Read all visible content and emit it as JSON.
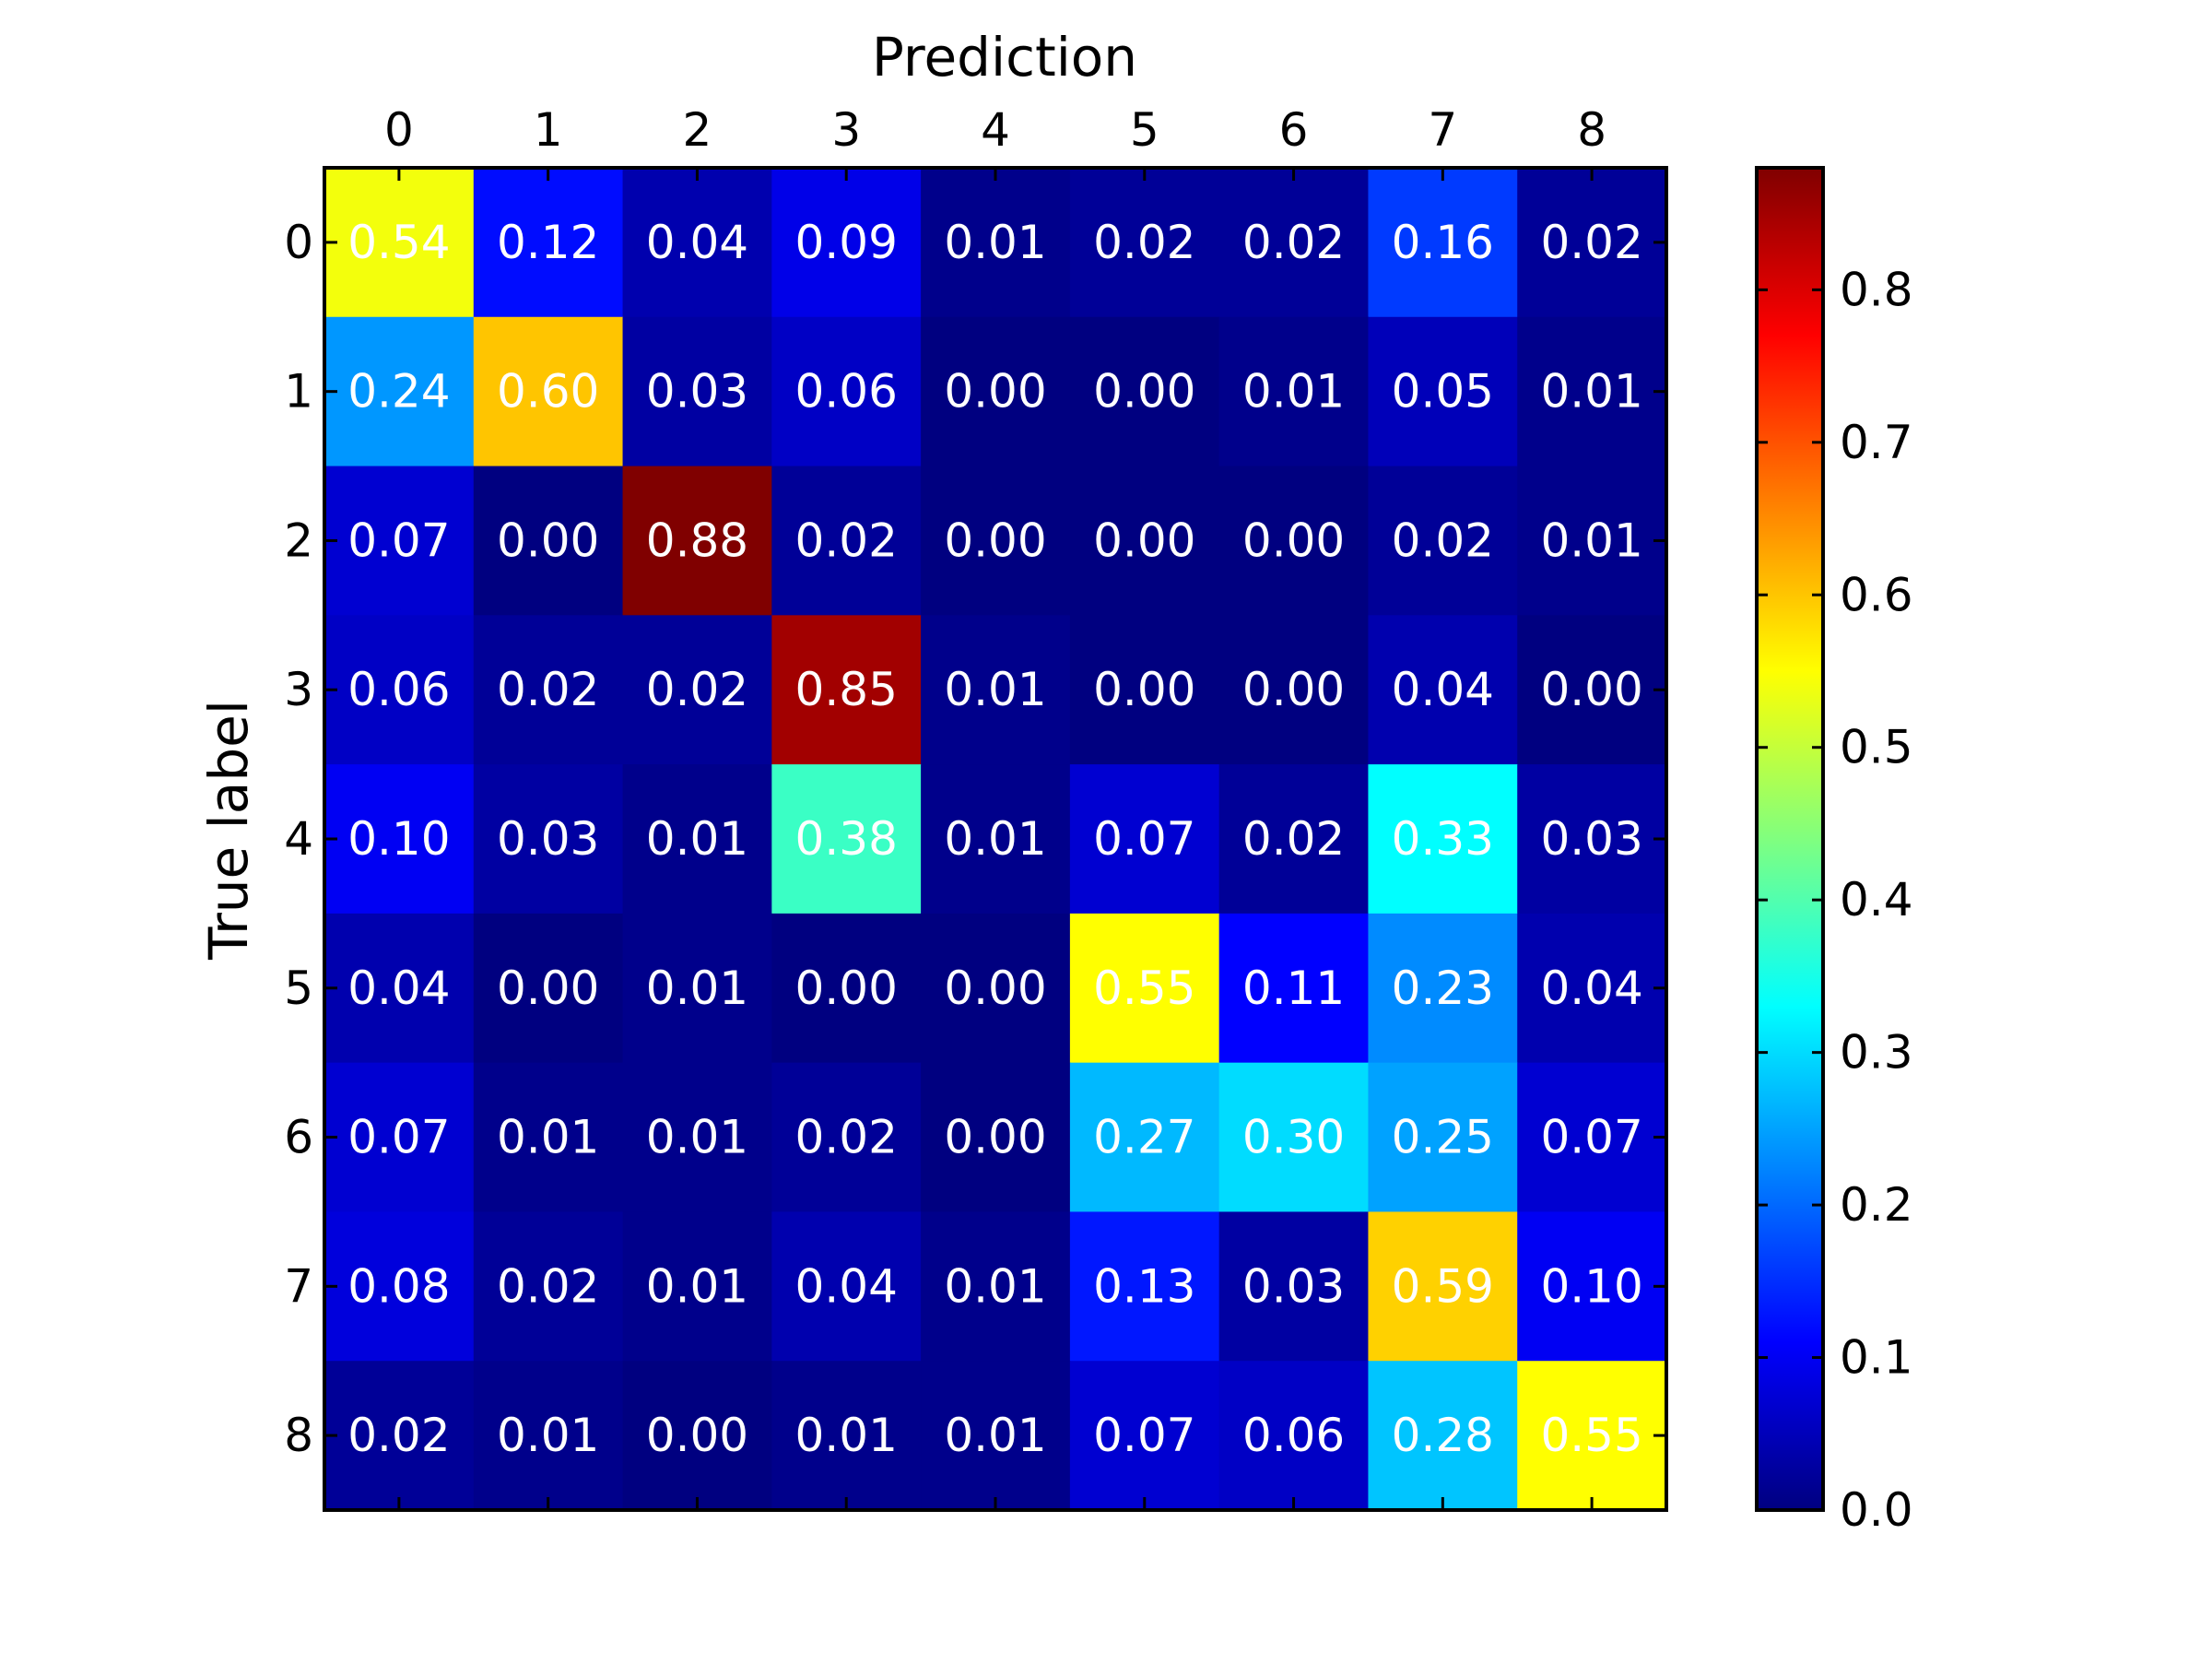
{
  "chart_data": {
    "type": "heatmap",
    "xlabel": "Prediction",
    "ylabel": "True label",
    "x_tick_labels": [
      "0",
      "1",
      "2",
      "3",
      "4",
      "5",
      "6",
      "7",
      "8"
    ],
    "y_tick_labels": [
      "0",
      "1",
      "2",
      "3",
      "4",
      "5",
      "6",
      "7",
      "8"
    ],
    "values": [
      [
        0.54,
        0.12,
        0.04,
        0.09,
        0.01,
        0.02,
        0.02,
        0.16,
        0.02
      ],
      [
        0.24,
        0.6,
        0.03,
        0.06,
        0.0,
        0.0,
        0.01,
        0.05,
        0.01
      ],
      [
        0.07,
        0.0,
        0.88,
        0.02,
        0.0,
        0.0,
        0.0,
        0.02,
        0.01
      ],
      [
        0.06,
        0.02,
        0.02,
        0.85,
        0.01,
        0.0,
        0.0,
        0.04,
        0.0
      ],
      [
        0.1,
        0.03,
        0.01,
        0.38,
        0.01,
        0.07,
        0.02,
        0.33,
        0.03
      ],
      [
        0.04,
        0.0,
        0.01,
        0.0,
        0.0,
        0.55,
        0.11,
        0.23,
        0.04
      ],
      [
        0.07,
        0.01,
        0.01,
        0.02,
        0.0,
        0.27,
        0.3,
        0.25,
        0.07
      ],
      [
        0.08,
        0.02,
        0.01,
        0.04,
        0.01,
        0.13,
        0.03,
        0.59,
        0.1
      ],
      [
        0.02,
        0.01,
        0.0,
        0.01,
        0.01,
        0.07,
        0.06,
        0.28,
        0.55
      ]
    ],
    "value_format_decimals": 2,
    "colormap": "jet",
    "color_range": [
      0.0,
      0.88
    ],
    "colorbar_ticks": [
      0.0,
      0.1,
      0.2,
      0.3,
      0.4,
      0.5,
      0.6,
      0.7,
      0.8
    ],
    "colorbar_tick_labels": [
      "0.0",
      "0.1",
      "0.2",
      "0.3",
      "0.4",
      "0.5",
      "0.6",
      "0.7",
      "0.8"
    ],
    "x_axis_position": "top",
    "cell_text_color": "#ffffff",
    "frame_color": "#000000",
    "grid": false
  }
}
